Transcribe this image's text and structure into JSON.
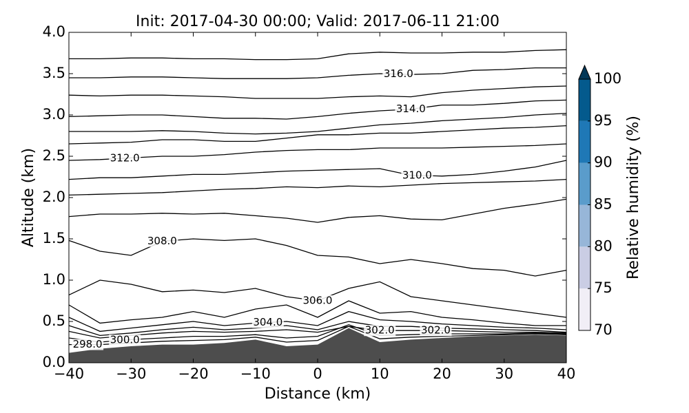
{
  "chart_data": {
    "type": "contour",
    "title": "Init: 2017-04-30 00:00; Valid: 2017-06-11 21:00",
    "x_label": "Distance (km)",
    "y_label": "Altitude (km)",
    "xlim": [
      -40,
      40
    ],
    "xticks": [
      {
        "value": -40,
        "label": "−40"
      },
      {
        "value": -30,
        "label": "−30"
      },
      {
        "value": -20,
        "label": "−20"
      },
      {
        "value": -10,
        "label": "−10"
      },
      0,
      10,
      20,
      30,
      40
    ],
    "ylim": [
      0,
      4
    ],
    "yticks": [
      {
        "value": 0,
        "label": "0.0"
      },
      {
        "value": 0.5,
        "label": "0.5"
      },
      {
        "value": 1,
        "label": "1.0"
      },
      {
        "value": 1.5,
        "label": "1.5"
      },
      {
        "value": 2,
        "label": "2.0"
      },
      {
        "value": 2.5,
        "label": "2.5"
      },
      {
        "value": 3,
        "label": "3.0"
      },
      {
        "value": 3.5,
        "label": "3.5"
      },
      {
        "value": 4,
        "label": "4.0"
      }
    ],
    "x": [
      -40,
      -35,
      -30,
      -25,
      -20,
      -15,
      -10,
      -5,
      0,
      5,
      10,
      15,
      20,
      25,
      30,
      35,
      40
    ],
    "line_color": "#000000",
    "contours": [
      {
        "values": [
          3.68,
          3.68,
          3.69,
          3.69,
          3.68,
          3.68,
          3.67,
          3.67,
          3.68,
          3.74,
          3.76,
          3.75,
          3.75,
          3.76,
          3.76,
          3.78,
          3.79
        ]
      },
      {
        "label": "316.0",
        "label_x": [
          13
        ],
        "values": [
          3.45,
          3.45,
          3.46,
          3.46,
          3.45,
          3.44,
          3.44,
          3.44,
          3.45,
          3.48,
          3.5,
          3.49,
          3.5,
          3.54,
          3.55,
          3.57,
          3.57
        ]
      },
      {
        "values": [
          3.24,
          3.23,
          3.24,
          3.24,
          3.23,
          3.22,
          3.2,
          3.2,
          3.2,
          3.22,
          3.23,
          3.22,
          3.27,
          3.3,
          3.32,
          3.34,
          3.35
        ]
      },
      {
        "label": "314.0",
        "label_x": [
          15
        ],
        "values": [
          2.98,
          2.99,
          3.0,
          3.0,
          2.98,
          2.96,
          2.96,
          2.95,
          2.98,
          3.02,
          3.05,
          3.07,
          3.12,
          3.12,
          3.14,
          3.17,
          3.18
        ]
      },
      {
        "values": [
          2.8,
          2.8,
          2.8,
          2.81,
          2.8,
          2.78,
          2.77,
          2.78,
          2.8,
          2.84,
          2.88,
          2.9,
          2.93,
          2.95,
          2.97,
          3.0,
          3.02
        ]
      },
      {
        "values": [
          2.65,
          2.66,
          2.67,
          2.7,
          2.7,
          2.68,
          2.68,
          2.72,
          2.76,
          2.76,
          2.78,
          2.78,
          2.8,
          2.82,
          2.84,
          2.85,
          2.87
        ]
      },
      {
        "label": "312.0",
        "label_x": [
          -31
        ],
        "values": [
          2.45,
          2.46,
          2.48,
          2.5,
          2.5,
          2.52,
          2.55,
          2.57,
          2.58,
          2.58,
          2.6,
          2.6,
          2.6,
          2.61,
          2.62,
          2.63,
          2.65
        ]
      },
      {
        "label": "310.0",
        "label_x": [
          16
        ],
        "values": [
          2.22,
          2.24,
          2.24,
          2.26,
          2.28,
          2.28,
          2.3,
          2.32,
          2.33,
          2.34,
          2.35,
          2.27,
          2.26,
          2.28,
          2.32,
          2.37,
          2.45
        ]
      },
      {
        "values": [
          2.03,
          2.04,
          2.05,
          2.06,
          2.08,
          2.1,
          2.11,
          2.13,
          2.12,
          2.14,
          2.13,
          2.15,
          2.17,
          2.18,
          2.19,
          2.2,
          2.22
        ]
      },
      {
        "values": [
          1.77,
          1.8,
          1.8,
          1.81,
          1.8,
          1.81,
          1.78,
          1.75,
          1.7,
          1.76,
          1.78,
          1.74,
          1.73,
          1.8,
          1.87,
          1.92,
          1.98
        ]
      },
      {
        "label": "308.0",
        "label_x": [
          -25
        ],
        "values": [
          1.48,
          1.35,
          1.3,
          1.47,
          1.5,
          1.48,
          1.5,
          1.42,
          1.3,
          1.28,
          1.2,
          1.25,
          1.2,
          1.14,
          1.12,
          1.05,
          1.12
        ]
      },
      {
        "label": "306.0",
        "label_x": [
          0
        ],
        "values": [
          0.82,
          1.0,
          0.95,
          0.86,
          0.88,
          0.85,
          0.9,
          0.8,
          0.75,
          0.9,
          0.98,
          0.8,
          0.75,
          0.7,
          0.65,
          0.6,
          0.55
        ]
      },
      {
        "values": [
          0.7,
          0.48,
          0.52,
          0.55,
          0.62,
          0.55,
          0.65,
          0.7,
          0.55,
          0.75,
          0.6,
          0.62,
          0.55,
          0.52,
          0.48,
          0.45,
          0.45
        ]
      },
      {
        "label": "304.0",
        "label_x": [
          -8
        ],
        "values": [
          0.55,
          0.38,
          0.42,
          0.46,
          0.5,
          0.45,
          0.48,
          0.5,
          0.45,
          0.62,
          0.52,
          0.5,
          0.47,
          0.45,
          0.43,
          0.42,
          0.4
        ]
      },
      {
        "values": [
          0.45,
          0.33,
          0.36,
          0.4,
          0.43,
          0.4,
          0.42,
          0.45,
          0.4,
          0.5,
          0.44,
          0.44,
          0.42,
          0.41,
          0.4,
          0.39,
          0.37
        ]
      },
      {
        "label": "302.0",
        "label_x": [
          10,
          19
        ],
        "values": [
          0.38,
          0.3,
          0.33,
          0.36,
          0.38,
          0.37,
          0.38,
          0.4,
          0.37,
          0.44,
          0.39,
          0.39,
          0.39,
          0.38,
          0.37,
          0.37,
          0.36
        ]
      },
      {
        "label": "300.0",
        "label_x": [
          -31
        ],
        "values": [
          0.3,
          0.25,
          0.28,
          0.3,
          0.32,
          0.32,
          0.34,
          0.3,
          0.32,
          0.46,
          0.33,
          0.34,
          0.35,
          0.35,
          0.35,
          0.36,
          0.35
        ]
      },
      {
        "label": "298.0",
        "label_x": [
          -37
        ],
        "values": [
          0.22,
          0.22,
          0.24,
          0.26,
          0.27,
          0.28,
          0.31,
          0.25,
          0.27,
          0.44,
          0.29,
          0.31,
          0.32,
          0.33,
          0.34,
          0.35,
          0.34
        ]
      }
    ],
    "terrain": {
      "color": "#4d4d4d",
      "values": [
        0.12,
        0.17,
        0.2,
        0.22,
        0.22,
        0.24,
        0.28,
        0.2,
        0.22,
        0.42,
        0.25,
        0.28,
        0.3,
        0.32,
        0.33,
        0.34,
        0.33
      ]
    },
    "colorbar": {
      "label": "Relative humidity (%)",
      "levels": [
        70,
        75,
        80,
        85,
        90,
        95,
        100
      ],
      "colors": [
        "#f1eef6",
        "#cacde4",
        "#97b6d8",
        "#5a9ccb",
        "#1f78b6",
        "#045a8d"
      ],
      "extend_color": "#023858",
      "ticks": [
        70,
        75,
        80,
        85,
        90,
        95,
        100
      ]
    }
  }
}
